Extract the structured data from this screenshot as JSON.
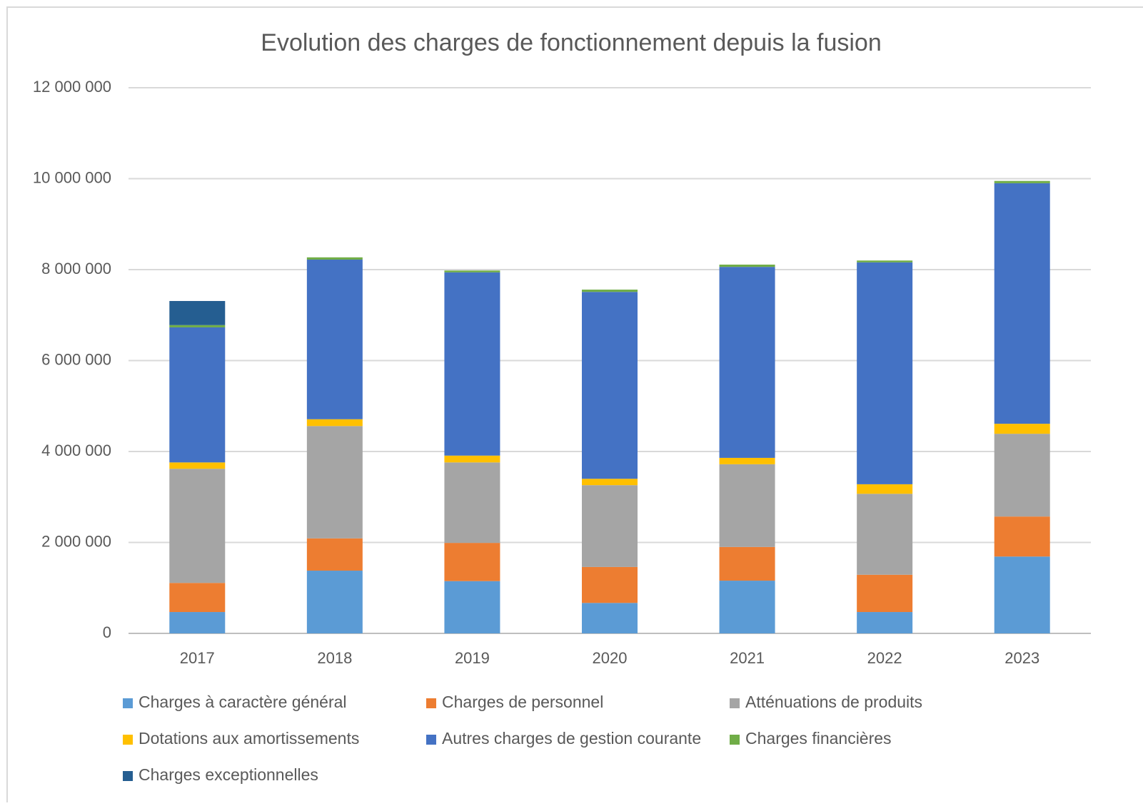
{
  "chart_data": {
    "type": "stacked_bar",
    "title": "Evolution des charges de fonctionnement depuis la fusion",
    "categories": [
      "2017",
      "2018",
      "2019",
      "2020",
      "2021",
      "2022",
      "2023"
    ],
    "series": [
      {
        "name": "Charges à caractère général",
        "color": "#5b9bd5",
        "values": [
          470000,
          1380000,
          1150000,
          670000,
          1160000,
          470000,
          1690000
        ]
      },
      {
        "name": "Charges de personnel",
        "color": "#ed7d31",
        "values": [
          640000,
          710000,
          840000,
          790000,
          740000,
          820000,
          880000
        ]
      },
      {
        "name": "Atténuations de produits",
        "color": "#a5a5a5",
        "values": [
          2510000,
          2470000,
          1770000,
          1800000,
          1820000,
          1780000,
          1820000
        ]
      },
      {
        "name": "Dotations aux amortissements",
        "color": "#ffc000",
        "values": [
          140000,
          150000,
          150000,
          140000,
          140000,
          210000,
          220000
        ]
      },
      {
        "name": "Autres charges de gestion courante",
        "color": "#4472c4",
        "values": [
          2970000,
          3510000,
          4030000,
          4110000,
          4200000,
          4880000,
          5290000
        ]
      },
      {
        "name": "Charges financières",
        "color": "#70ad47",
        "values": [
          50000,
          50000,
          40000,
          50000,
          50000,
          40000,
          50000
        ]
      },
      {
        "name": "Charges exceptionnelles",
        "color": "#255e91",
        "values": [
          530000,
          0,
          0,
          0,
          0,
          0,
          0
        ]
      }
    ],
    "ylim": [
      0,
      12000000
    ],
    "yticks": [
      0,
      {
        "value": 2000000,
        "label": "2 000 000"
      },
      {
        "value": 4000000,
        "label": "4 000 000"
      },
      {
        "value": 6000000,
        "label": "6 000 000"
      },
      {
        "value": 8000000,
        "label": "8 000 000"
      },
      {
        "value": 10000000,
        "label": "10 000 000"
      },
      {
        "value": 12000000,
        "label": "12 000 000"
      }
    ],
    "grid": true
  }
}
